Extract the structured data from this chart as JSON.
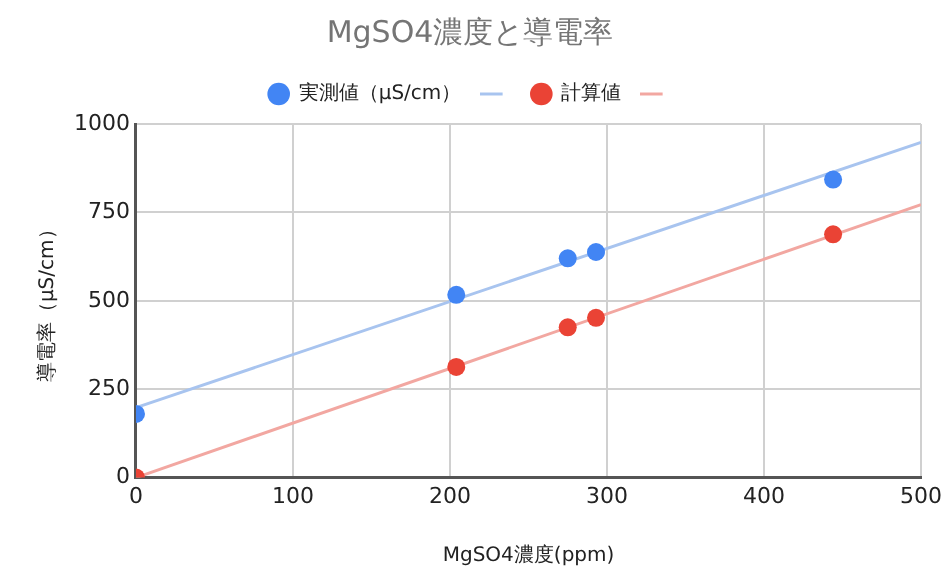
{
  "chart_data": {
    "type": "scatter",
    "title": "MgSO4濃度と導電率",
    "xlabel": "MgSO4濃度(ppm)",
    "ylabel": "導電率（μS/cm）",
    "xlim": [
      0,
      500
    ],
    "xticks": [
      0,
      100,
      200,
      300,
      400,
      500
    ],
    "ylim": [
      0,
      1000
    ],
    "yticks": [
      0,
      250,
      500,
      750,
      1000
    ],
    "grid": true,
    "legend": "top",
    "marker": "circle",
    "series": [
      {
        "name": "実測値（μS/cm）",
        "color": "#4285f4",
        "x": [
          0,
          204,
          275,
          293,
          444
        ],
        "values": [
          180,
          517,
          620,
          638,
          843
        ]
      },
      {
        "type": "line",
        "marker": "none",
        "color": "#a8c4ef",
        "x": [
          0,
          500
        ],
        "values": [
          198,
          948
        ]
      },
      {
        "name": "計算値",
        "color": "#ea4335",
        "x": [
          0,
          204,
          275,
          293,
          444
        ],
        "values": [
          0,
          313,
          425,
          452,
          688
        ]
      },
      {
        "type": "line",
        "marker": "none",
        "color": "#f2a7a1",
        "x": [
          0,
          500
        ],
        "values": [
          0,
          772
        ]
      }
    ]
  }
}
